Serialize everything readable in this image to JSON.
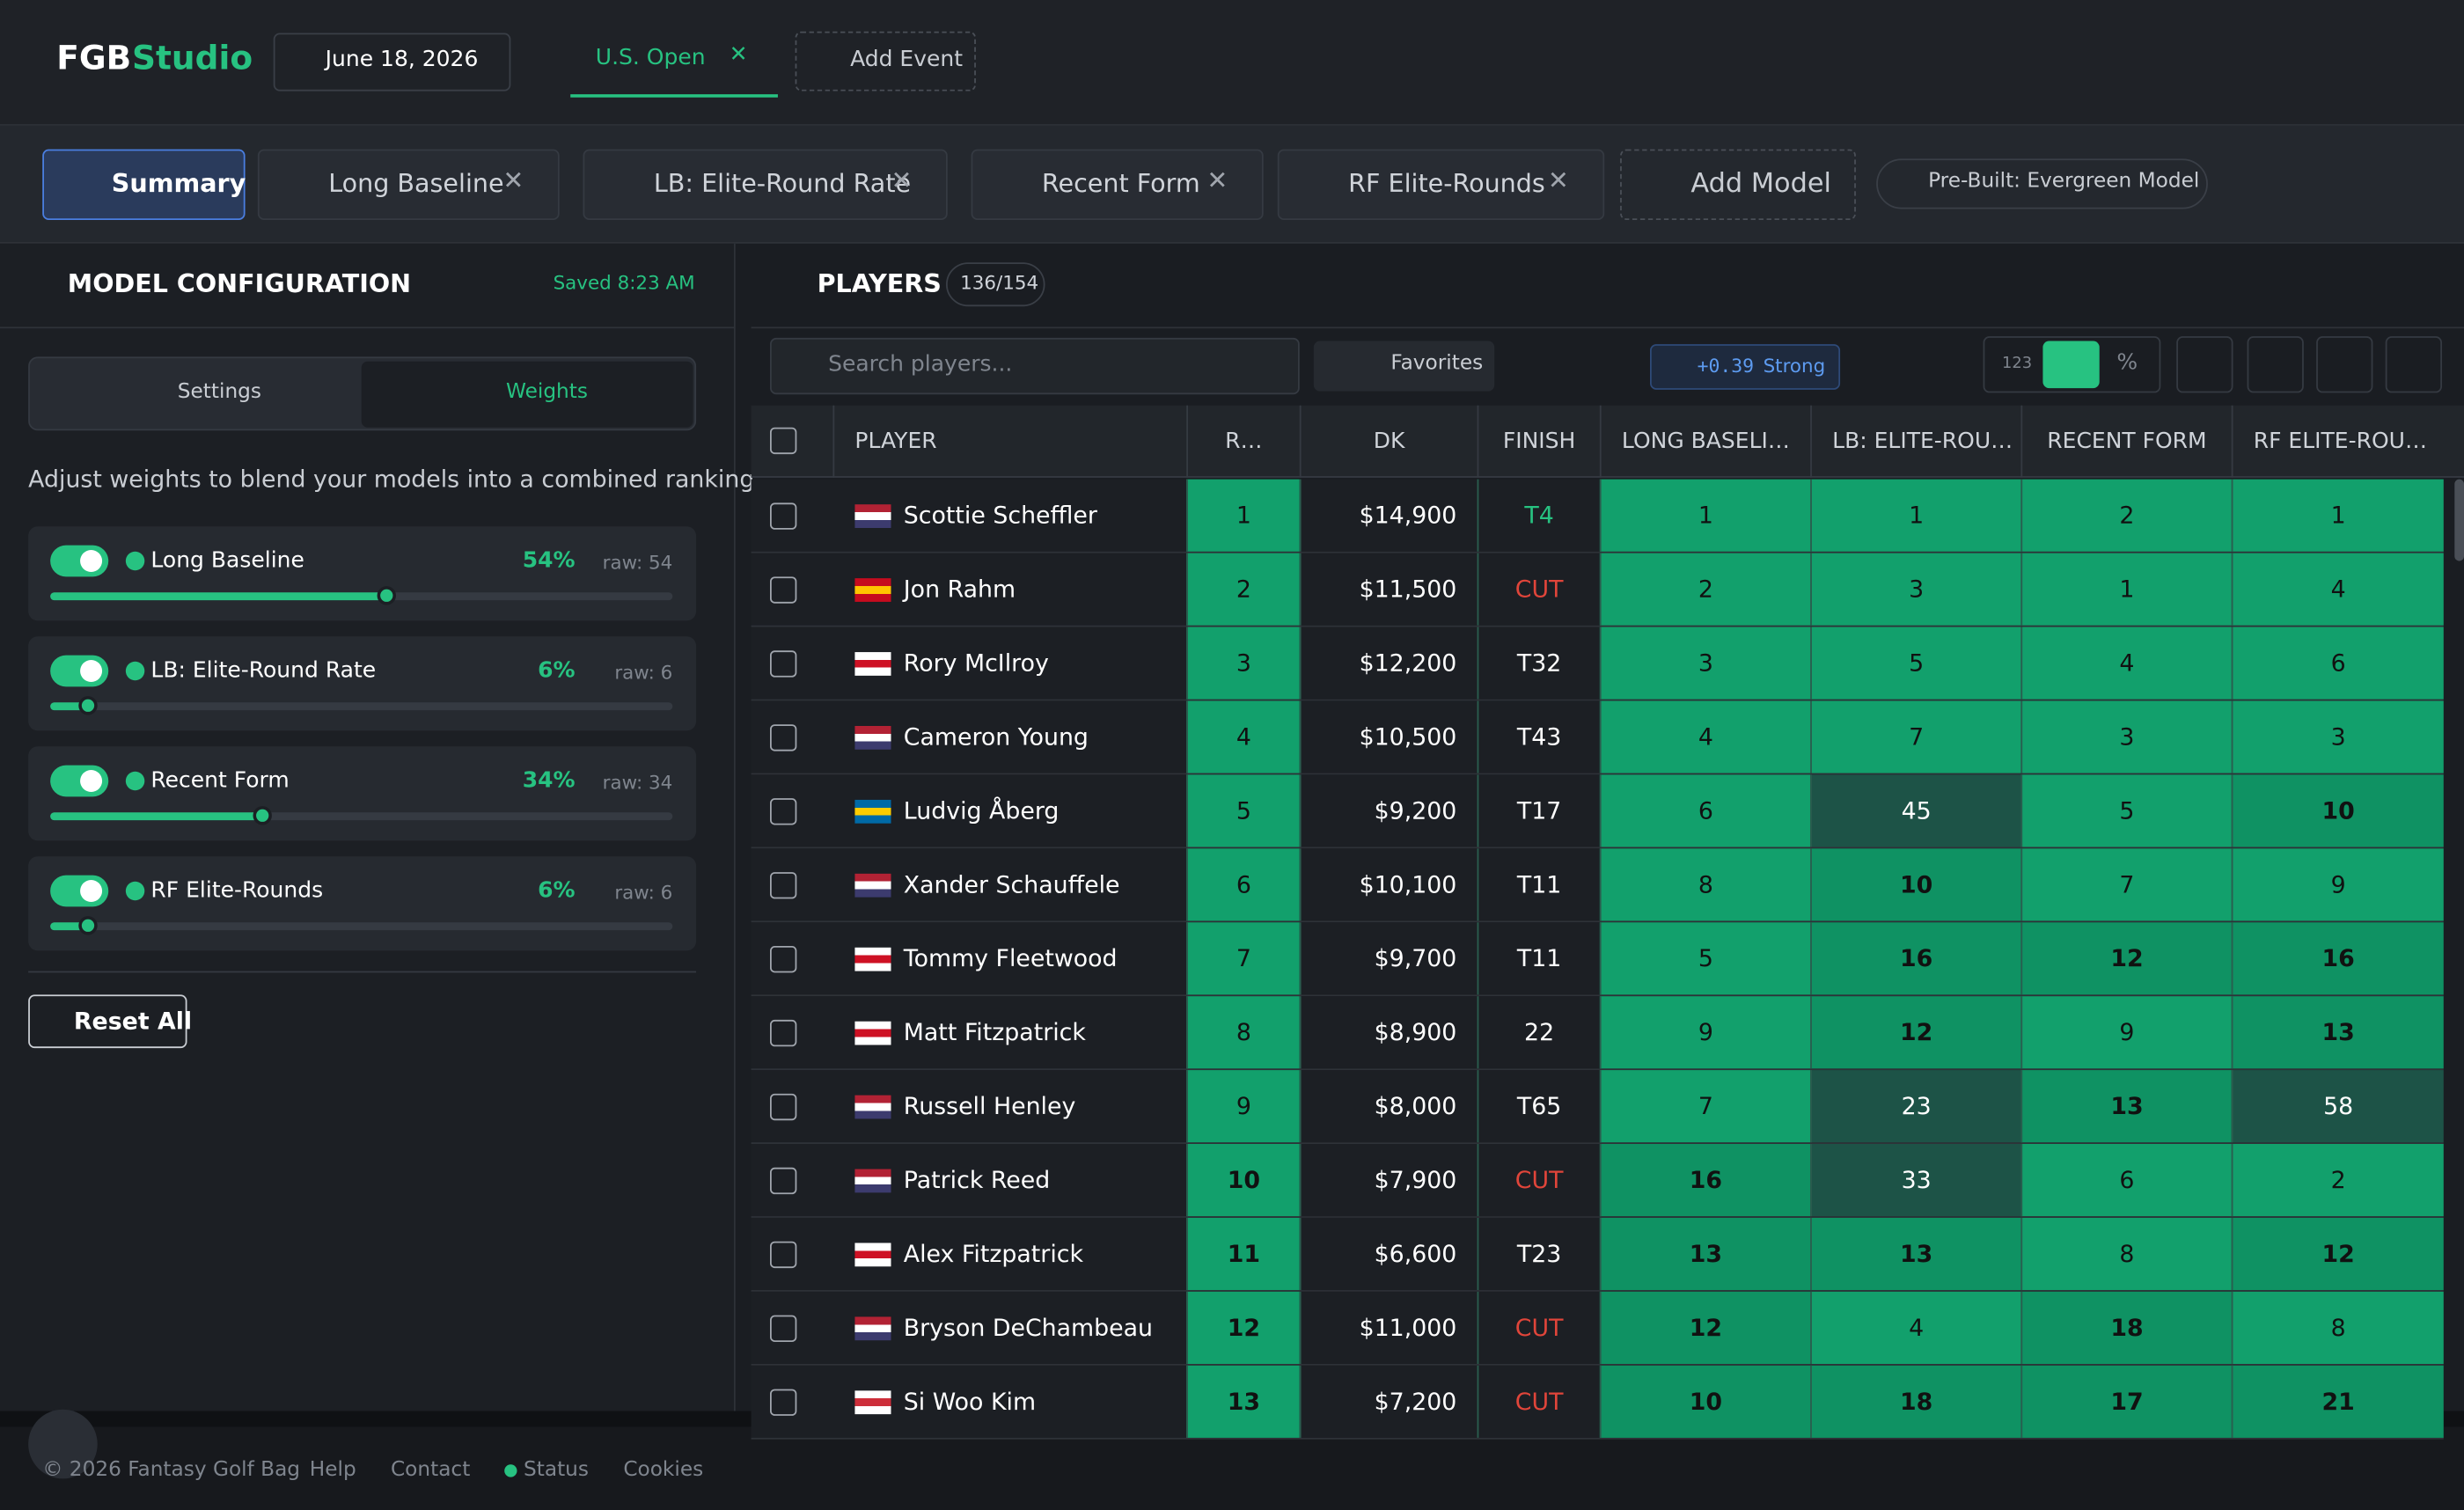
{
  "header": {
    "logo_main": "FGB",
    "logo_accent": "Studio",
    "date": "June 18, 2026",
    "event": "U.S. Open",
    "add_event": "Add Event"
  },
  "tabs": {
    "items": [
      "Summary",
      "Long Baseline",
      "LB: Elite-Round Rate",
      "Recent Form",
      "RF Elite-Rounds"
    ],
    "add_model": "Add Model",
    "prebuilt": "Pre-Built: Evergreen Model"
  },
  "config": {
    "title": "MODEL CONFIGURATION",
    "saved": "Saved 8:23 AM",
    "settings_tab": "Settings",
    "weights_tab": "Weights",
    "description": "Adjust weights to blend your models into a combined ranking.",
    "weights": [
      {
        "name": "Long Baseline",
        "value": 54,
        "label": "54%",
        "raw": "raw: 54"
      },
      {
        "name": "LB: Elite-Round Rate",
        "value": 6,
        "label": "6%",
        "raw": "raw: 6"
      },
      {
        "name": "Recent Form",
        "value": 34,
        "label": "34%",
        "raw": "raw: 34"
      },
      {
        "name": "RF Elite-Rounds",
        "value": 6,
        "label": "6%",
        "raw": "raw: 6"
      }
    ],
    "reset": "Reset All"
  },
  "players": {
    "title": "PLAYERS",
    "count": "136/154",
    "search": "Search players...",
    "favorites": "Favorites",
    "strength_value": "+0.39",
    "strength_label": "Strong",
    "mode_numeric": "123",
    "mode_percent": "%",
    "columns": [
      "PLAYER",
      "R…",
      "DK",
      "FINISH",
      "LONG BASELI…",
      "LB: ELITE-ROU…",
      "RECENT FORM",
      "RF ELITE-ROU…"
    ],
    "rows": [
      [
        "Scottie Scheffler",
        1,
        "$14,900",
        "T4",
        1,
        1,
        2,
        1
      ],
      [
        "Jon Rahm",
        2,
        "$11,500",
        "CUT",
        2,
        3,
        1,
        4
      ],
      [
        "Rory McIlroy",
        3,
        "$12,200",
        "T32",
        3,
        5,
        4,
        6
      ],
      [
        "Cameron Young",
        4,
        "$10,500",
        "T43",
        4,
        7,
        3,
        3
      ],
      [
        "Ludvig Åberg",
        5,
        "$9,200",
        "T17",
        6,
        45,
        5,
        10
      ],
      [
        "Xander Schauffele",
        6,
        "$10,100",
        "T11",
        8,
        10,
        7,
        9
      ],
      [
        "Tommy Fleetwood",
        7,
        "$9,700",
        "T11",
        5,
        16,
        12,
        16
      ],
      [
        "Matt Fitzpatrick",
        8,
        "$8,900",
        "22",
        9,
        12,
        9,
        13
      ],
      [
        "Russell Henley",
        9,
        "$8,000",
        "T65",
        7,
        23,
        13,
        58
      ],
      [
        "Patrick Reed",
        10,
        "$7,900",
        "CUT",
        16,
        33,
        6,
        2
      ],
      [
        "Alex Fitzpatrick",
        11,
        "$6,600",
        "T23",
        13,
        13,
        8,
        12
      ],
      [
        "Bryson DeChambeau",
        12,
        "$11,000",
        "CUT",
        12,
        4,
        18,
        8
      ],
      [
        "Si Woo Kim",
        13,
        "$7,200",
        "CUT",
        10,
        18,
        17,
        21
      ]
    ]
  },
  "footer": {
    "copyright": "© 2026 Fantasy Golf Bag",
    "links": [
      "Help",
      "Contact",
      "Status",
      "Cookies"
    ]
  }
}
